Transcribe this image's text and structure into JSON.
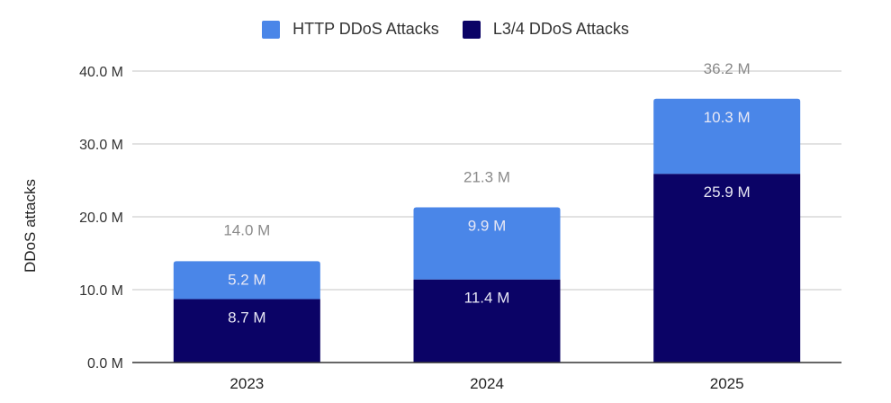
{
  "colors": {
    "http": "#4a86e8",
    "l34": "#0b0366",
    "grid": "#d9d9d9",
    "baseline": "#333333",
    "total_label": "#8a8a8a",
    "segment_label": "#e8e8f5"
  },
  "chart_data": {
    "type": "bar",
    "stacked": true,
    "title": "",
    "xlabel": "",
    "ylabel": "DDoS attacks",
    "ylim": [
      0,
      40
    ],
    "y_unit": "M",
    "y_ticks": [
      0,
      10,
      20,
      30,
      40
    ],
    "y_tick_labels": [
      "0.0 M",
      "10.0 M",
      "20.0 M",
      "30.0 M",
      "40.0 M"
    ],
    "grid": true,
    "legend_position": "top-center",
    "categories": [
      "2023",
      "2024",
      "2025"
    ],
    "series": [
      {
        "name": "L3/4 DDoS Attacks",
        "key": "l34",
        "values": [
          8.7,
          11.4,
          25.9
        ],
        "labels": [
          "8.7 M",
          "11.4 M",
          "25.9 M"
        ]
      },
      {
        "name": "HTTP DDoS Attacks",
        "key": "http",
        "values": [
          5.2,
          9.9,
          10.3
        ],
        "labels": [
          "5.2 M",
          "9.9 M",
          "10.3 M"
        ]
      }
    ],
    "totals": [
      14.0,
      21.3,
      36.2
    ],
    "total_labels": [
      "14.0 M",
      "21.3 M",
      "36.2 M"
    ]
  },
  "legend": {
    "items": [
      {
        "label": "HTTP DDoS Attacks",
        "key": "http"
      },
      {
        "label": "L3/4 DDoS Attacks",
        "key": "l34"
      }
    ]
  }
}
